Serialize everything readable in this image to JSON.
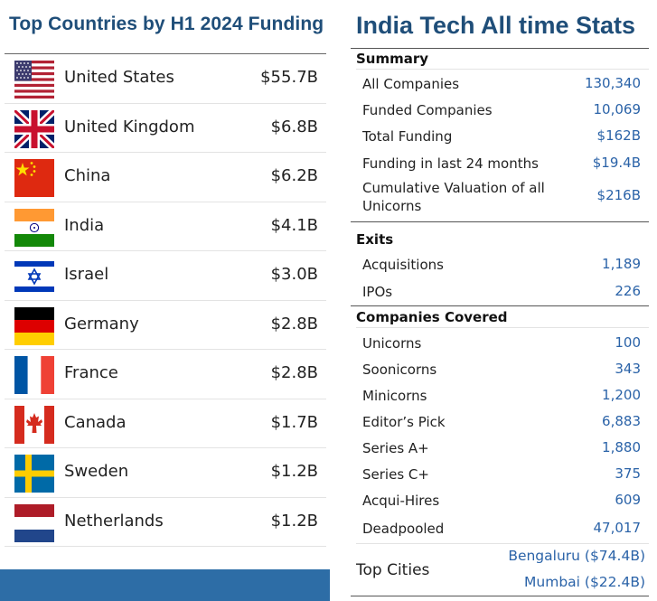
{
  "left": {
    "title": "Top Countries by H1 2024 Funding",
    "countries": [
      {
        "name": "United States",
        "value": "$55.7B",
        "flag": "us-flag-icon"
      },
      {
        "name": "United Kingdom",
        "value": "$6.8B",
        "flag": "uk-flag-icon"
      },
      {
        "name": "China",
        "value": "$6.2B",
        "flag": "china-flag-icon"
      },
      {
        "name": "India",
        "value": "$4.1B",
        "flag": "india-flag-icon"
      },
      {
        "name": "Israel",
        "value": "$3.0B",
        "flag": "israel-flag-icon"
      },
      {
        "name": "Germany",
        "value": "$2.8B",
        "flag": "germany-flag-icon"
      },
      {
        "name": "France",
        "value": "$2.8B",
        "flag": "france-flag-icon"
      },
      {
        "name": "Canada",
        "value": "$1.7B",
        "flag": "canada-flag-icon"
      },
      {
        "name": "Sweden",
        "value": "$1.2B",
        "flag": "sweden-flag-icon"
      },
      {
        "name": "Netherlands",
        "value": "$1.2B",
        "flag": "netherlands-flag-icon"
      }
    ]
  },
  "right": {
    "title": "India Tech All time Stats",
    "summary": {
      "heading": "Summary",
      "items": [
        {
          "label": "All Companies",
          "value": "130,340"
        },
        {
          "label": "Funded Companies",
          "value": "10,069"
        },
        {
          "label": "Total Funding",
          "value": "$162B"
        },
        {
          "label": "Funding in last 24 months",
          "value": "$19.4B"
        },
        {
          "label": "Cumulative Valuation of all Unicorns",
          "value": "$216B"
        }
      ]
    },
    "exits": {
      "heading": "Exits",
      "items": [
        {
          "label": "Acquisitions",
          "value": "1,189"
        },
        {
          "label": "IPOs",
          "value": "226"
        }
      ]
    },
    "covered": {
      "heading": "Companies Covered",
      "items": [
        {
          "label": "Unicorns",
          "value": "100"
        },
        {
          "label": "Soonicorns",
          "value": "343"
        },
        {
          "label": "Minicorns",
          "value": "1,200"
        },
        {
          "label": "Editor’s Pick",
          "value": "6,883"
        },
        {
          "label": "Series A+",
          "value": "1,880"
        },
        {
          "label": "Series C+",
          "value": "375"
        },
        {
          "label": "Acqui-Hires",
          "value": "609"
        },
        {
          "label": "Deadpooled",
          "value": "47,017"
        }
      ]
    },
    "top_cities": {
      "label": "Top Cities",
      "values": [
        "Bengaluru ($74.4B)",
        "Mumbai ($22.4B)"
      ]
    }
  },
  "colors": {
    "title_blue": "#1f4e79",
    "value_blue": "#2b63a8",
    "bar_blue": "#2d6da6"
  }
}
